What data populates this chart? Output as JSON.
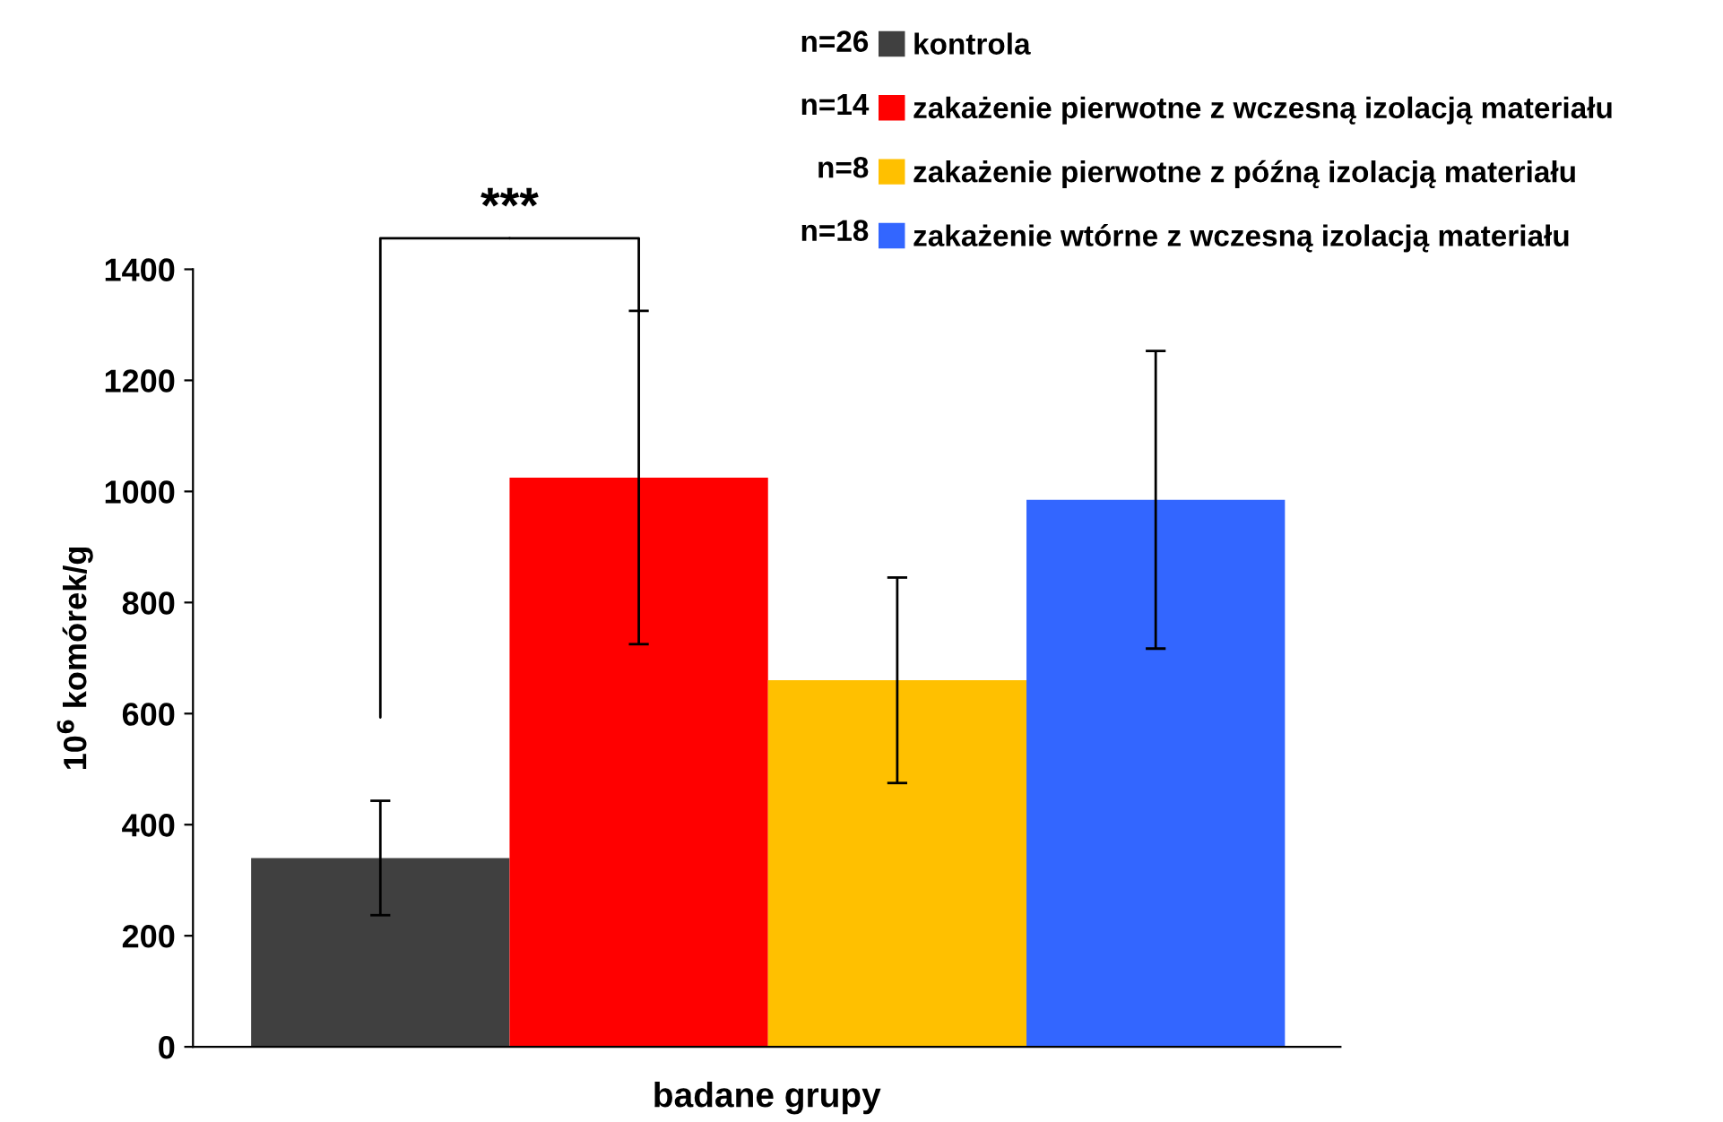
{
  "chart_data": {
    "type": "bar",
    "ylabel": "10$^{6}$ komórek/g",
    "xlabel": "badane grupy",
    "categories": [
      null
    ],
    "series": [
      {
        "name": "kontrola",
        "color": "#404040",
        "values": [
          340
        ],
        "errors": [
          103
        ]
      },
      {
        "name": "zakażenie pierwotne z wczesną izolacją materiału",
        "color": "#ff0000",
        "values": [
          1025
        ],
        "errors": [
          300
        ]
      },
      {
        "name": "zakażenie pierwotne z późną izolacją materiału",
        "color": "#ffc000",
        "values": [
          660
        ],
        "errors": [
          185
        ]
      },
      {
        "name": "zakażenie wtórne z wczesną izolacją materiału",
        "color": "#3366ff",
        "values": [
          985
        ],
        "errors": [
          268
        ]
      }
    ],
    "ylim": [
      0,
      1400
    ],
    "yticks": [
      0,
      200,
      400,
      600,
      800,
      1000,
      1200,
      1400
    ],
    "grid": false,
    "legend": "top right",
    "tick_labels": "y",
    "annotations": [
      "***",
      "n=26",
      "n=14",
      "n=8",
      "n=18"
    ]
  }
}
